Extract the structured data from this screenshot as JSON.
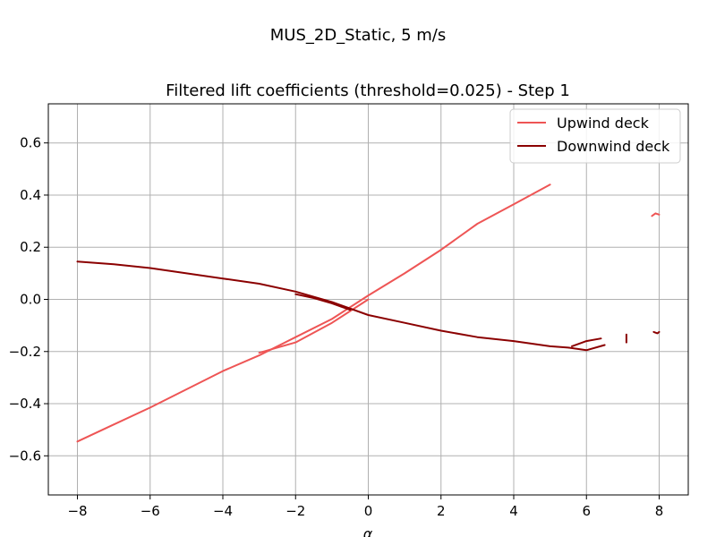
{
  "figure": {
    "suptitle": "MUS_2D_Static, 5 m/s"
  },
  "chart_data": {
    "type": "line",
    "title": "Filtered lift coefficients (threshold=0.025) - Step 1",
    "xlabel": "α",
    "ylabel": "",
    "xlim": [
      -8.8,
      8.8
    ],
    "ylim": [
      -0.75,
      0.75
    ],
    "xticks": [
      -8,
      -6,
      -4,
      -2,
      0,
      2,
      4,
      6,
      8
    ],
    "yticks": [
      -0.6,
      -0.4,
      -0.2,
      0.0,
      0.2,
      0.4,
      0.6
    ],
    "xtick_labels": [
      "−8",
      "−6",
      "−4",
      "−2",
      "0",
      "2",
      "4",
      "6",
      "8"
    ],
    "ytick_labels": [
      "−0.6",
      "−0.4",
      "−0.2",
      "0.0",
      "0.2",
      "0.4",
      "0.6"
    ],
    "grid": true,
    "legend_position": "top-right",
    "series": [
      {
        "name": "Upwind deck",
        "color": "#ee5555",
        "segments": [
          {
            "x": [
              -8.0,
              -7.0,
              -6.0,
              -5.0,
              -4.0,
              -3.0,
              -2.0,
              -1.0,
              0.0,
              1.0,
              2.0,
              3.0,
              4.0,
              5.0
            ],
            "y": [
              -0.545,
              -0.48,
              -0.415,
              -0.345,
              -0.275,
              -0.215,
              -0.145,
              -0.075,
              0.015,
              0.1,
              0.19,
              0.29,
              0.365,
              0.44
            ]
          },
          {
            "x": [
              -3.0,
              -2.0,
              -1.0,
              0.0
            ],
            "y": [
              -0.205,
              -0.165,
              -0.09,
              0.0
            ]
          },
          {
            "x": [
              7.8,
              7.9,
              8.0
            ],
            "y": [
              0.32,
              0.33,
              0.325
            ]
          }
        ]
      },
      {
        "name": "Downwind deck",
        "color": "#8b0000",
        "segments": [
          {
            "x": [
              -8.0,
              -7.0,
              -6.0,
              -5.0,
              -4.0,
              -3.0,
              -2.0,
              -1.0,
              0.0,
              1.0,
              2.0,
              3.0,
              4.0,
              5.0,
              5.5,
              6.0,
              6.5
            ],
            "y": [
              0.145,
              0.135,
              0.12,
              0.1,
              0.08,
              0.06,
              0.03,
              -0.01,
              -0.06,
              -0.09,
              -0.12,
              -0.145,
              -0.16,
              -0.18,
              -0.185,
              -0.195,
              -0.175
            ]
          },
          {
            "x": [
              -2.0,
              -1.5,
              -1.0,
              -0.5
            ],
            "y": [
              0.02,
              0.005,
              -0.015,
              -0.04
            ]
          },
          {
            "x": [
              5.6,
              6.0,
              6.4
            ],
            "y": [
              -0.18,
              -0.16,
              -0.15
            ]
          },
          {
            "x": [
              7.1,
              7.1
            ],
            "y": [
              -0.135,
              -0.165
            ]
          },
          {
            "x": [
              7.85,
              7.95,
              8.0
            ],
            "y": [
              -0.125,
              -0.13,
              -0.125
            ]
          }
        ]
      }
    ]
  }
}
